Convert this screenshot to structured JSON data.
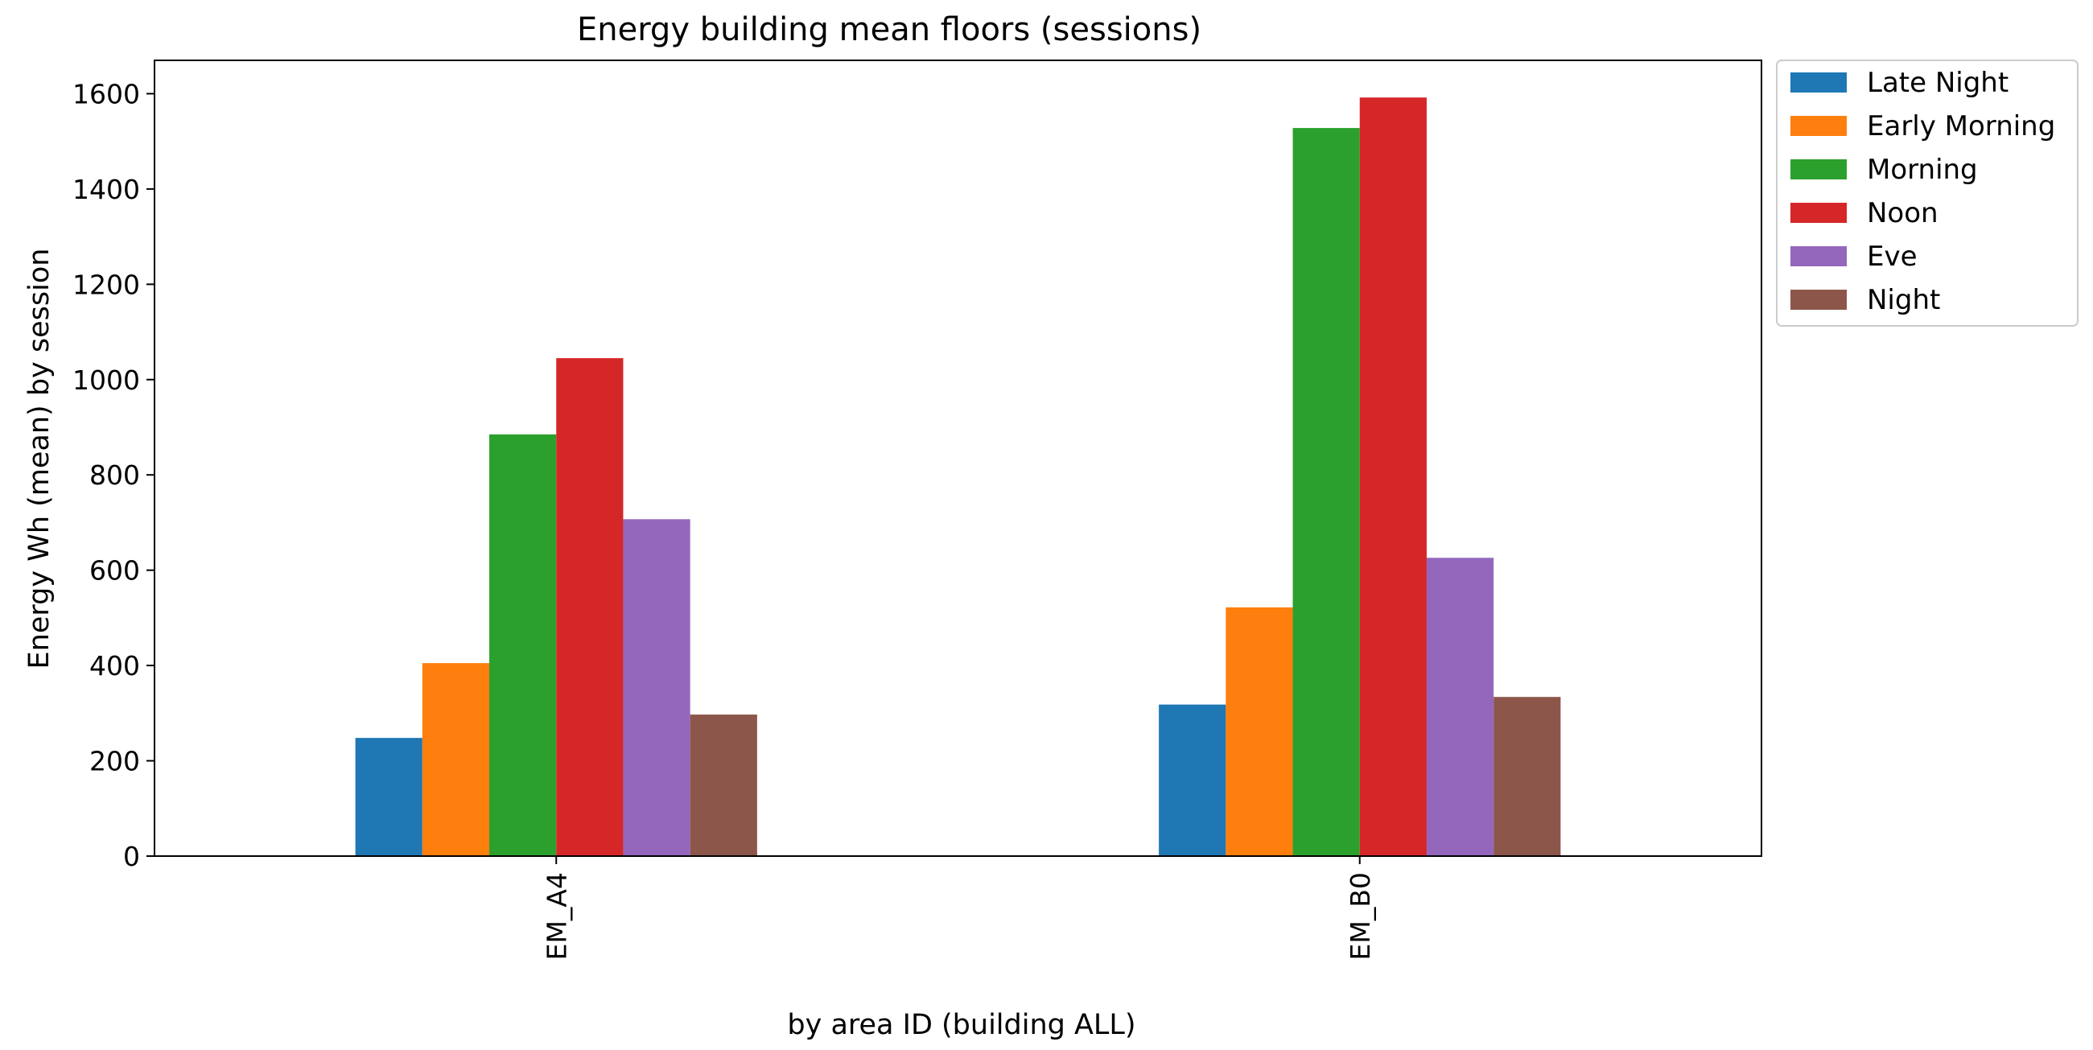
{
  "chart_data": {
    "type": "bar",
    "title": "Energy building mean floors (sessions)",
    "xlabel": "by area ID (building ALL)",
    "ylabel": "Energy Wh (mean) by session",
    "categories": [
      "EM_A4",
      "EM_B0"
    ],
    "series": [
      {
        "name": "Late Night",
        "color": "#1f77b4",
        "values": [
          248,
          318
        ]
      },
      {
        "name": "Early Morning",
        "color": "#ff7f0e",
        "values": [
          405,
          522
        ]
      },
      {
        "name": "Morning",
        "color": "#2ca02c",
        "values": [
          885,
          1528
        ]
      },
      {
        "name": "Noon",
        "color": "#d62728",
        "values": [
          1045,
          1592
        ]
      },
      {
        "name": "Eve",
        "color": "#9467bd",
        "values": [
          707,
          626
        ]
      },
      {
        "name": "Night",
        "color": "#8c564b",
        "values": [
          297,
          334
        ]
      }
    ],
    "ylim": [
      0,
      1670
    ],
    "yticks": [
      0,
      200,
      400,
      600,
      800,
      1000,
      1200,
      1400,
      1600
    ],
    "grid": false,
    "legend_position": "outside-top-right"
  }
}
